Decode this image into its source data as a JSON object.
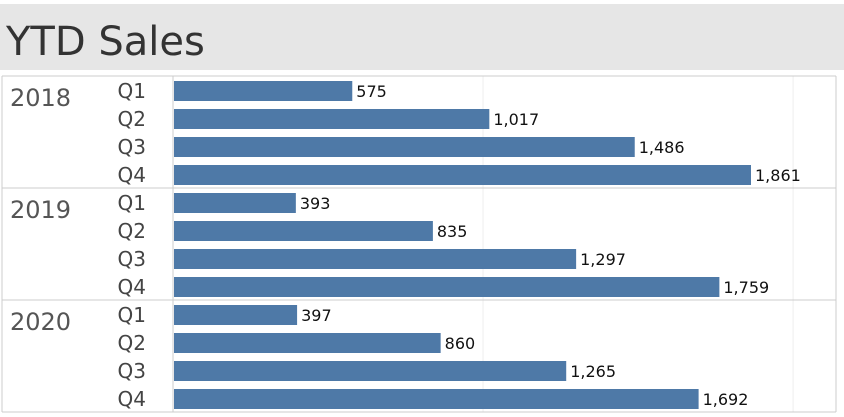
{
  "title": "YTD Sales",
  "colors": {
    "bar": "#4e79a7",
    "title_bg": "#e6e6e6",
    "divider": "#cccccc",
    "gridline": "#eeeeee"
  },
  "chart_data": {
    "type": "bar",
    "orientation": "horizontal",
    "title": "YTD Sales",
    "xlim": [
      0,
      2000
    ],
    "grid": true,
    "groups": [
      {
        "year": "2018",
        "bars": [
          {
            "quarter": "Q1",
            "value": 575,
            "label": "575"
          },
          {
            "quarter": "Q2",
            "value": 1017,
            "label": "1,017"
          },
          {
            "quarter": "Q3",
            "value": 1486,
            "label": "1,486"
          },
          {
            "quarter": "Q4",
            "value": 1861,
            "label": "1,861"
          }
        ]
      },
      {
        "year": "2019",
        "bars": [
          {
            "quarter": "Q1",
            "value": 393,
            "label": "393"
          },
          {
            "quarter": "Q2",
            "value": 835,
            "label": "835"
          },
          {
            "quarter": "Q3",
            "value": 1297,
            "label": "1,297"
          },
          {
            "quarter": "Q4",
            "value": 1759,
            "label": "1,759"
          }
        ]
      },
      {
        "year": "2020",
        "bars": [
          {
            "quarter": "Q1",
            "value": 397,
            "label": "397"
          },
          {
            "quarter": "Q2",
            "value": 860,
            "label": "860"
          },
          {
            "quarter": "Q3",
            "value": 1265,
            "label": "1,265"
          },
          {
            "quarter": "Q4",
            "value": 1692,
            "label": "1,692"
          }
        ]
      }
    ]
  }
}
